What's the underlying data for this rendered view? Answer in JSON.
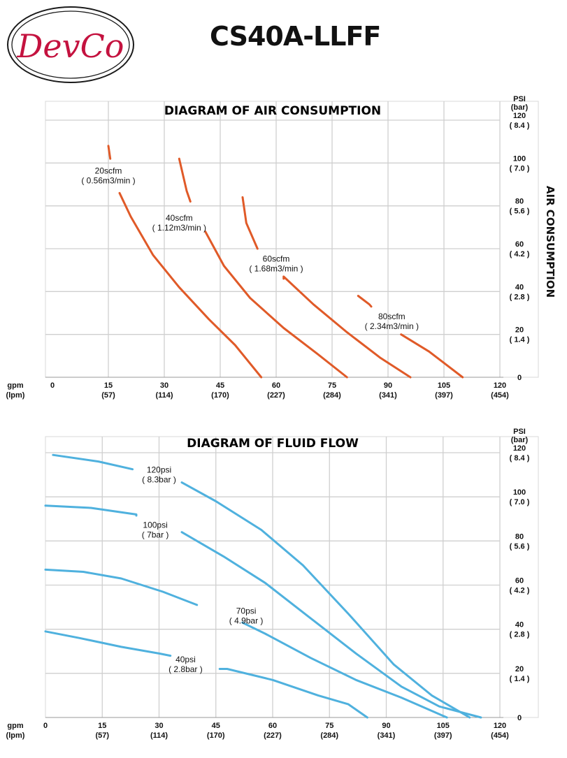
{
  "logo": {
    "text": "DevCo",
    "border_color": "#1a1a1a",
    "text_color": "#c4123f"
  },
  "model": "CS40A-LLFF",
  "colors": {
    "air": "#e05a28",
    "fluid": "#4fb1de",
    "grid": "#cfcfcf"
  },
  "chart_data": [
    {
      "type": "line",
      "title": "DIAGRAM OF AIR CONSUMPTION",
      "x_unit_label": "gpm",
      "x_unit_label_alt": "(lpm)",
      "x_ticks": [
        0,
        15,
        30,
        45,
        60,
        75,
        90,
        105,
        120
      ],
      "x_ticks_alt": [
        "",
        "(57)",
        "(114)",
        "(170)",
        "(227)",
        "(284)",
        "(341)",
        "(397)",
        "(454)"
      ],
      "y_unit_label": "PSI",
      "y_unit_label_alt": "(bar)",
      "y_ticks": [
        0,
        20,
        40,
        60,
        80,
        100,
        120
      ],
      "y_ticks_alt": [
        "",
        "( 1.4 )",
        "( 2.8 )",
        "( 4.2 )",
        "( 5.6 )",
        "( 7.0 )",
        "( 8.4 )"
      ],
      "right_axis_title": "AIR CONSUMPTION",
      "xlim": [
        0,
        120
      ],
      "ylim": [
        0,
        120
      ],
      "grid": true,
      "series": [
        {
          "name": "20scfm",
          "name_alt": "( 0.56m3/min )",
          "label_at": [
            15,
            95
          ],
          "points": [
            [
              15,
              108
            ],
            [
              17,
              93
            ],
            [
              21,
              75
            ],
            [
              27,
              57
            ],
            [
              34,
              42
            ],
            [
              42,
              27
            ],
            [
              49,
              15
            ],
            [
              56,
              0
            ]
          ],
          "gap": [
            [
              15.5,
              102
            ],
            [
              18,
              86
            ]
          ]
        },
        {
          "name": "40scfm",
          "name_alt": "( 1.12m3/min )",
          "label_at": [
            34,
            73
          ],
          "points": [
            [
              34,
              102
            ],
            [
              36,
              87
            ],
            [
              40,
              72
            ],
            [
              46,
              52
            ],
            [
              53,
              37
            ],
            [
              62,
              23
            ],
            [
              71,
              11
            ],
            [
              79,
              0
            ]
          ],
          "gap": [
            [
              37,
              82
            ],
            [
              41,
              68
            ]
          ]
        },
        {
          "name": "60scfm",
          "name_alt": "( 1.68m3/min )",
          "label_at": [
            60,
            54
          ],
          "points": [
            [
              51,
              84
            ],
            [
              52,
              72
            ],
            [
              56,
              57
            ],
            [
              62,
              47
            ],
            [
              70,
              34
            ],
            [
              79,
              21
            ],
            [
              88,
              9
            ],
            [
              96,
              0
            ]
          ],
          "gap": [
            [
              55,
              60
            ],
            [
              62,
              46
            ]
          ]
        },
        {
          "name": "80scfm",
          "name_alt": "( 2.34m3/min )",
          "label_at": [
            91,
            27
          ],
          "points": [
            [
              82,
              38
            ],
            [
              85,
              34
            ],
            [
              88,
              29
            ],
            [
              93,
              21
            ],
            [
              101,
              12
            ],
            [
              110,
              0
            ]
          ],
          "gap": [
            [
              85.5,
              33
            ],
            [
              93.5,
              20
            ]
          ]
        }
      ]
    },
    {
      "type": "line",
      "title": "DIAGRAM OF FLUID FLOW",
      "x_unit_label": "gpm",
      "x_unit_label_alt": "(lpm)",
      "x_ticks": [
        0,
        15,
        30,
        45,
        60,
        75,
        90,
        105,
        120
      ],
      "x_ticks_alt": [
        "",
        "(57)",
        "(114)",
        "(170)",
        "(227)",
        "(284)",
        "(341)",
        "(397)",
        "(454)"
      ],
      "y_unit_label": "PSI",
      "y_unit_label_alt": "(bar)",
      "y_ticks": [
        0,
        20,
        40,
        60,
        80,
        100,
        120
      ],
      "y_ticks_alt": [
        "",
        "( 1.4 )",
        "( 2.8 )",
        "( 4.2 )",
        "( 5.6 )",
        "( 7.0 )",
        "( 8.4 )"
      ],
      "xlim": [
        0,
        120
      ],
      "ylim": [
        0,
        120
      ],
      "grid": true,
      "series": [
        {
          "name": "120psi",
          "name_alt": "( 8.3bar )",
          "label_at": [
            30,
            111
          ],
          "points": [
            [
              2,
              119
            ],
            [
              14,
              116
            ],
            [
              24,
              112
            ],
            [
              34,
              107
            ],
            [
              45,
              98
            ],
            [
              57,
              85
            ],
            [
              68,
              69
            ],
            [
              80,
              47
            ],
            [
              92,
              24
            ],
            [
              102,
              10
            ],
            [
              112,
              0
            ]
          ],
          "gap": [
            [
              23,
              112.5
            ],
            [
              36,
              106.5
            ]
          ]
        },
        {
          "name": "100psi",
          "name_alt": "( 7bar )",
          "label_at": [
            29,
            86
          ],
          "points": [
            [
              0,
              96
            ],
            [
              12,
              95
            ],
            [
              24,
              92
            ],
            [
              36,
              84
            ],
            [
              47,
              73
            ],
            [
              58,
              61
            ],
            [
              70,
              45
            ],
            [
              82,
              29
            ],
            [
              94,
              14
            ],
            [
              104,
              5
            ],
            [
              115,
              0
            ]
          ],
          "gap": [
            [
              24,
              91.5
            ],
            [
              36,
              84
            ]
          ]
        },
        {
          "name": "70psi",
          "name_alt": "( 4.9bar )",
          "label_at": [
            53,
            47
          ],
          "points": [
            [
              0,
              67
            ],
            [
              10,
              66
            ],
            [
              20,
              63
            ],
            [
              31,
              57
            ],
            [
              40,
              51
            ],
            [
              48,
              45
            ],
            [
              58,
              38
            ],
            [
              70,
              27
            ],
            [
              82,
              17
            ],
            [
              94,
              9
            ],
            [
              106,
              0
            ]
          ],
          "gap": [
            [
              40,
              51
            ],
            [
              52,
              43
            ]
          ]
        },
        {
          "name": "40psi",
          "name_alt": "( 2.8bar )",
          "label_at": [
            37,
            25
          ],
          "points": [
            [
              0,
              39
            ],
            [
              9,
              36
            ],
            [
              20,
              32
            ],
            [
              30,
              29
            ],
            [
              38,
              26
            ],
            [
              48,
              22
            ],
            [
              60,
              17
            ],
            [
              72,
              10
            ],
            [
              80,
              6
            ],
            [
              85,
              0
            ]
          ],
          "gap": [
            [
              33,
              28
            ],
            [
              46,
              22
            ]
          ]
        }
      ]
    }
  ]
}
